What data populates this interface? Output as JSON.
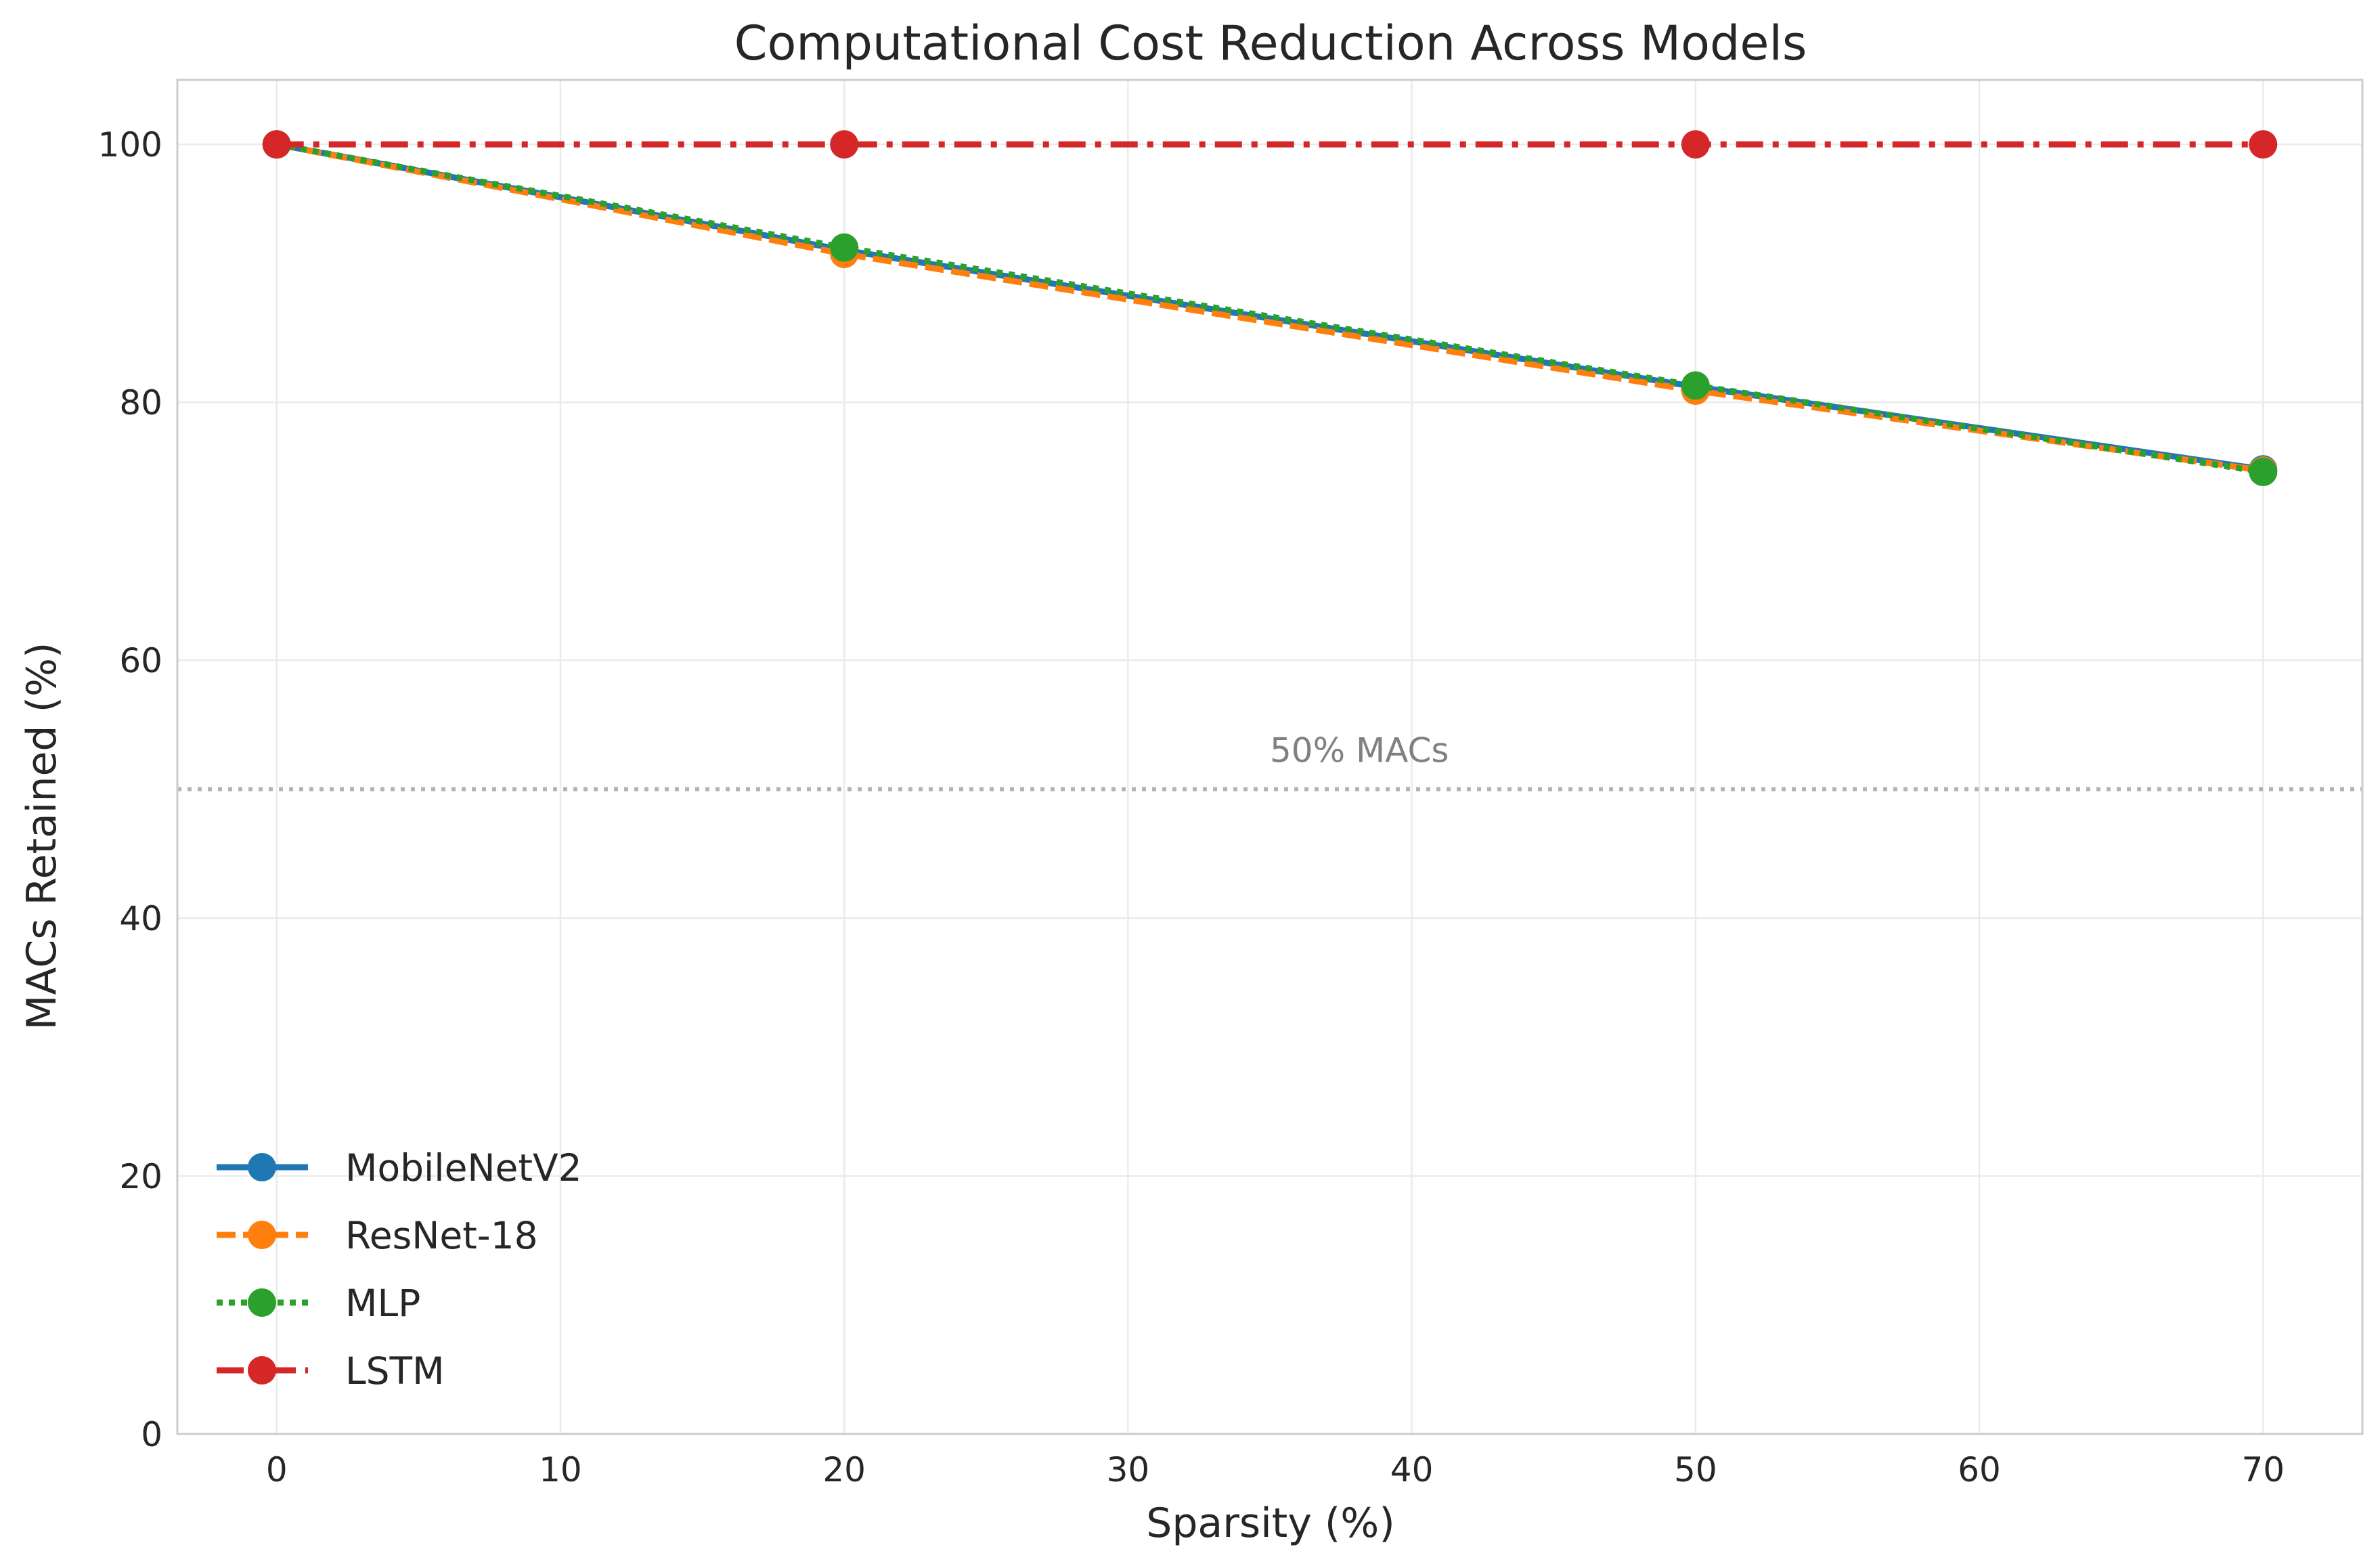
{
  "chart_data": {
    "type": "line",
    "title": "Computational Cost Reduction Across Models",
    "xlabel": "Sparsity (%)",
    "ylabel": "MACs Retained (%)",
    "xlim": [
      -3.5,
      73.5
    ],
    "ylim": [
      0,
      105
    ],
    "xticks": [
      0,
      10,
      20,
      30,
      40,
      50,
      60,
      70
    ],
    "yticks": [
      0,
      20,
      40,
      60,
      80,
      100
    ],
    "grid": true,
    "legend_position": "lower-left",
    "x": [
      0,
      20,
      50,
      70
    ],
    "series": [
      {
        "name": "MobileNetV2",
        "values": [
          100,
          91.8,
          81.2,
          74.8
        ],
        "color": "#1f77b4",
        "style": "solid"
      },
      {
        "name": "ResNet-18",
        "values": [
          100,
          91.5,
          80.9,
          74.7
        ],
        "color": "#ff7f0e",
        "style": "dashed"
      },
      {
        "name": "MLP",
        "values": [
          100,
          92.0,
          81.3,
          74.6
        ],
        "color": "#2ca02c",
        "style": "dotted"
      },
      {
        "name": "LSTM",
        "values": [
          100,
          100,
          100,
          100
        ],
        "color": "#d62728",
        "style": "dashdot"
      }
    ],
    "reference_line": {
      "y": 50,
      "label": "50% MACs",
      "label_x": 35,
      "color": "#b3b3b3"
    }
  }
}
